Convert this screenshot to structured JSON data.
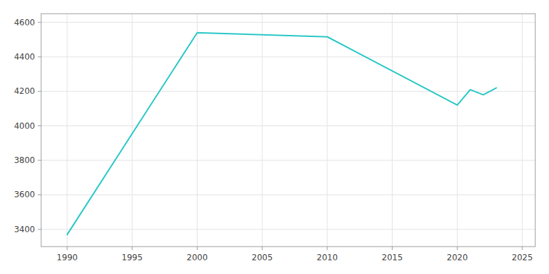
{
  "chart_data": {
    "type": "line",
    "x": [
      1990,
      2000,
      2010,
      2020,
      2021,
      2022,
      2023
    ],
    "values": [
      3370,
      4540,
      4516,
      4120,
      4210,
      4180,
      4220
    ],
    "color": "#26C6C6",
    "xlim": [
      1988,
      2026
    ],
    "ylim": [
      3300,
      4650
    ],
    "xticks": [
      1990,
      1995,
      2000,
      2005,
      2010,
      2015,
      2020,
      2025
    ],
    "yticks": [
      3400,
      3600,
      3800,
      4000,
      4200,
      4400,
      4600
    ],
    "grid": true
  }
}
